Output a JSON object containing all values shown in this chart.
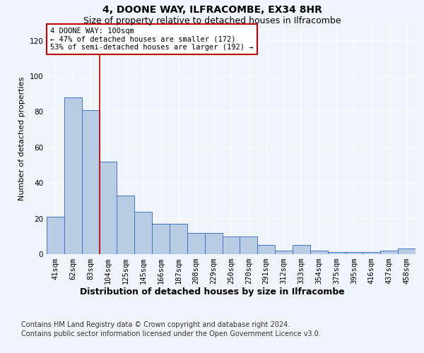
{
  "title": "4, DOONE WAY, ILFRACOMBE, EX34 8HR",
  "subtitle": "Size of property relative to detached houses in Ilfracombe",
  "xlabel": "Distribution of detached houses by size in Ilfracombe",
  "ylabel": "Number of detached properties",
  "categories": [
    "41sqm",
    "62sqm",
    "83sqm",
    "104sqm",
    "125sqm",
    "145sqm",
    "166sqm",
    "187sqm",
    "208sqm",
    "229sqm",
    "250sqm",
    "270sqm",
    "291sqm",
    "312sqm",
    "333sqm",
    "354sqm",
    "375sqm",
    "395sqm",
    "416sqm",
    "437sqm",
    "458sqm"
  ],
  "values": [
    21,
    88,
    81,
    52,
    33,
    24,
    17,
    17,
    12,
    12,
    10,
    10,
    5,
    2,
    5,
    2,
    1,
    1,
    1,
    2,
    3
  ],
  "bar_color": "#b8cce4",
  "bar_edge_color": "#4472c4",
  "ylim": [
    0,
    130
  ],
  "yticks": [
    0,
    20,
    40,
    60,
    80,
    100,
    120
  ],
  "vline_x_index": 3,
  "vline_color": "#c00000",
  "annotation_text": "4 DOONE WAY: 100sqm\n← 47% of detached houses are smaller (172)\n53% of semi-detached houses are larger (192) →",
  "annotation_box_color": "#ffffff",
  "annotation_box_edge": "#c00000",
  "footer1": "Contains HM Land Registry data © Crown copyright and database right 2024.",
  "footer2": "Contains public sector information licensed under the Open Government Licence v3.0.",
  "bg_color": "#f0f4fc",
  "grid_color": "#ffffff",
  "title_fontsize": 10,
  "subtitle_fontsize": 9,
  "ylabel_fontsize": 8,
  "xlabel_fontsize": 9,
  "tick_fontsize": 7.5,
  "footer_fontsize": 7,
  "annotation_fontsize": 7.5
}
